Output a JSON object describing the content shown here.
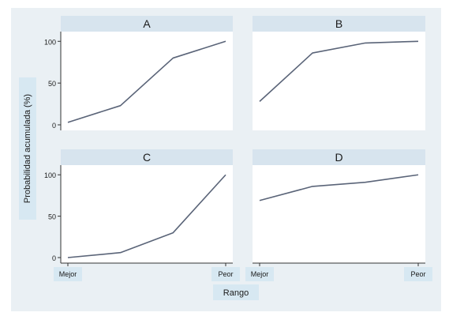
{
  "chart_data": {
    "type": "line",
    "ylabel": "Probabilidad acumulada (%)",
    "xlabel": "Rango",
    "x_tick_labels": [
      "Mejor",
      "Peor"
    ],
    "y_ticks": [
      0,
      50,
      100
    ],
    "ylim": [
      0,
      105
    ],
    "x": [
      1,
      2,
      3,
      4
    ],
    "grid": false,
    "colors": {
      "outer_bg": "#eaf0f4",
      "panel_bg": "#ffffff",
      "strip_bg": "#d7e4ee",
      "label_box": "#d7e8f2",
      "line": "#5a6478"
    },
    "panels": [
      {
        "title": "A",
        "values": [
          3,
          23,
          80,
          100
        ]
      },
      {
        "title": "B",
        "values": [
          28,
          86,
          98,
          100
        ]
      },
      {
        "title": "C",
        "values": [
          0,
          6,
          30,
          100
        ]
      },
      {
        "title": "D",
        "values": [
          69,
          86,
          91,
          100
        ]
      }
    ]
  }
}
